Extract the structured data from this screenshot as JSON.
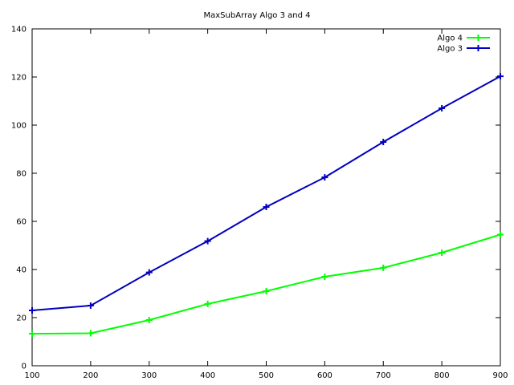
{
  "chart_data": {
    "type": "line",
    "title": "MaxSubArray Algo 3 and 4",
    "xlabel": "",
    "ylabel": "",
    "xlim": [
      100,
      900
    ],
    "ylim": [
      0,
      140
    ],
    "x_ticks": [
      100,
      200,
      300,
      400,
      500,
      600,
      700,
      800,
      900
    ],
    "y_ticks": [
      0,
      20,
      40,
      60,
      80,
      100,
      120,
      140
    ],
    "grid": false,
    "legend_position": "top-right",
    "x": [
      100,
      200,
      300,
      400,
      500,
      600,
      700,
      800,
      900
    ],
    "series": [
      {
        "name": "Algo 4",
        "color": "#00ff00",
        "values": [
          13.3,
          13.5,
          19.0,
          25.7,
          31.0,
          37.0,
          40.7,
          47.0,
          54.5
        ]
      },
      {
        "name": "Algo 3",
        "color": "#0000c0",
        "values": [
          23.0,
          25.0,
          38.8,
          51.8,
          66.0,
          78.3,
          93.0,
          107.0,
          120.3
        ]
      }
    ]
  }
}
